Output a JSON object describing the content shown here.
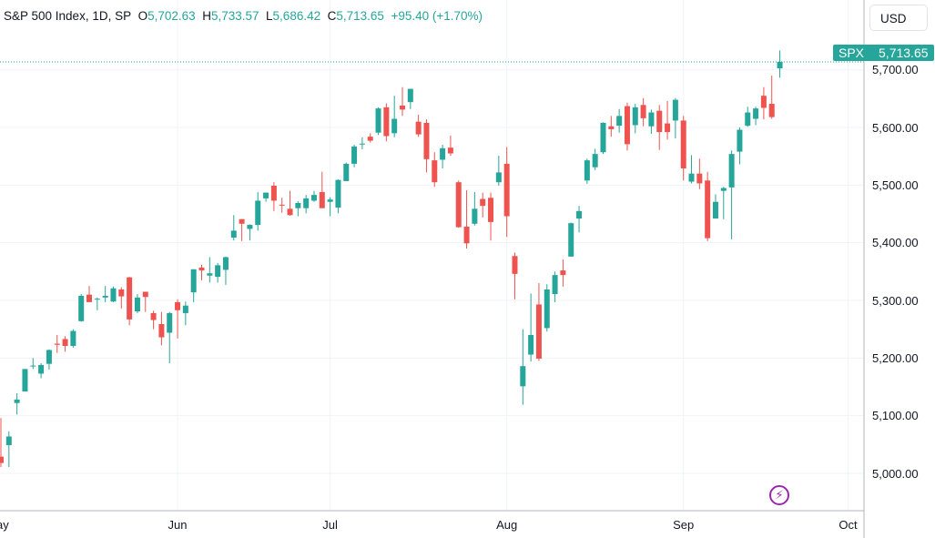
{
  "legend": {
    "title": "S&P 500 Index, 1D, SP",
    "open_label": "O",
    "open": "5,702.63",
    "high_label": "H",
    "high": "5,733.57",
    "low_label": "L",
    "low": "5,686.42",
    "close_label": "C",
    "close": "5,713.65",
    "change": "+95.40 (+1.70%)"
  },
  "currency_button": "USD",
  "price_tag": {
    "symbol": "SPX",
    "value": "5,713.65"
  },
  "colors": {
    "up": "#26a69a",
    "down": "#ef5350",
    "event": "#9c27b0"
  },
  "event_icon": "lightning-icon",
  "chart_data": {
    "type": "candlestick",
    "title": "S&P 500 Index, 1D, SP",
    "ylim": [
      4960,
      5760
    ],
    "yticks": [
      "5,000.00",
      "5,100.00",
      "5,200.00",
      "5,300.00",
      "5,400.00",
      "5,500.00",
      "5,600.00",
      "5,700.00"
    ],
    "ytick_values": [
      5000,
      5100,
      5200,
      5300,
      5400,
      5500,
      5600,
      5700
    ],
    "xticks": [
      {
        "label": "May",
        "index": -0.4
      },
      {
        "label": "Jun",
        "index": 22
      },
      {
        "label": "Jul",
        "index": 41
      },
      {
        "label": "Aug",
        "index": 63
      },
      {
        "label": "Sep",
        "index": 85
      },
      {
        "label": "Oct",
        "index": 105.5
      }
    ],
    "last_price": 5713.65,
    "ohlc": [
      [
        5029,
        5096,
        5011,
        5018
      ],
      [
        5049,
        5073,
        5011,
        5064
      ],
      [
        5122,
        5139,
        5102,
        5128
      ],
      [
        5142,
        5181,
        5142,
        5181
      ],
      [
        5187,
        5200,
        5181,
        5187
      ],
      [
        5173,
        5191,
        5165,
        5188
      ],
      [
        5190,
        5215,
        5180,
        5214
      ],
      [
        5225,
        5240,
        5209,
        5223
      ],
      [
        5233,
        5238,
        5211,
        5221
      ],
      [
        5221,
        5250,
        5218,
        5247
      ],
      [
        5264,
        5311,
        5263,
        5308
      ],
      [
        5310,
        5325,
        5297,
        5297
      ],
      [
        5303,
        5305,
        5283,
        5303
      ],
      [
        5305,
        5325,
        5297,
        5308
      ],
      [
        5298,
        5324,
        5297,
        5321
      ],
      [
        5319,
        5323,
        5286,
        5307
      ],
      [
        5340,
        5341,
        5257,
        5267
      ],
      [
        5281,
        5311,
        5278,
        5305
      ],
      [
        5315,
        5315,
        5280,
        5306
      ],
      [
        5278,
        5282,
        5250,
        5266
      ],
      [
        5259,
        5280,
        5222,
        5236
      ],
      [
        5244,
        5280,
        5191,
        5278
      ],
      [
        5297,
        5302,
        5234,
        5283
      ],
      [
        5278,
        5298,
        5257,
        5291
      ],
      [
        5314,
        5354,
        5297,
        5354
      ],
      [
        5357,
        5362,
        5335,
        5352
      ],
      [
        5343,
        5375,
        5331,
        5347
      ],
      [
        5341,
        5365,
        5331,
        5361
      ],
      [
        5353,
        5376,
        5327,
        5375
      ],
      [
        5409,
        5448,
        5404,
        5421
      ],
      [
        5441,
        5441,
        5403,
        5433
      ],
      [
        5424,
        5432,
        5404,
        5431
      ],
      [
        5431,
        5488,
        5421,
        5473
      ],
      [
        5477,
        5487,
        5471,
        5487
      ],
      [
        5499,
        5505,
        5455,
        5473
      ],
      [
        5466,
        5478,
        5452,
        5465
      ],
      [
        5459,
        5490,
        5447,
        5448
      ],
      [
        5460,
        5472,
        5446,
        5469
      ],
      [
        5460,
        5483,
        5451,
        5477
      ],
      [
        5473,
        5490,
        5471,
        5483
      ],
      [
        5488,
        5523,
        5460,
        5460
      ],
      [
        5471,
        5479,
        5446,
        5475
      ],
      [
        5461,
        5510,
        5451,
        5509
      ],
      [
        5507,
        5539,
        5507,
        5537
      ],
      [
        5537,
        5570,
        5531,
        5567
      ],
      [
        5572,
        5583,
        5562,
        5572
      ],
      [
        5584,
        5590,
        5574,
        5577
      ],
      [
        5591,
        5635,
        5587,
        5633
      ],
      [
        5635,
        5642,
        5576,
        5585
      ],
      [
        5590,
        5655,
        5583,
        5615
      ],
      [
        5638,
        5670,
        5620,
        5631
      ],
      [
        5644,
        5667,
        5632,
        5667
      ],
      [
        5610,
        5622,
        5584,
        5588
      ],
      [
        5608,
        5614,
        5522,
        5545
      ],
      [
        5543,
        5557,
        5497,
        5505
      ],
      [
        5544,
        5570,
        5529,
        5564
      ],
      [
        5565,
        5586,
        5551,
        5555
      ],
      [
        5505,
        5508,
        5426,
        5427
      ],
      [
        5428,
        5491,
        5390,
        5399
      ],
      [
        5433,
        5488,
        5430,
        5459
      ],
      [
        5476,
        5487,
        5444,
        5464
      ],
      [
        5478,
        5487,
        5404,
        5436
      ],
      [
        5505,
        5551,
        5499,
        5522
      ],
      [
        5537,
        5566,
        5410,
        5446
      ],
      [
        5377,
        5383,
        5302,
        5346
      ],
      [
        5151,
        5250,
        5119,
        5186
      ],
      [
        5206,
        5312,
        5194,
        5240
      ],
      [
        5293,
        5330,
        5195,
        5199
      ],
      [
        5252,
        5328,
        5246,
        5319
      ],
      [
        5311,
        5350,
        5297,
        5344
      ],
      [
        5352,
        5371,
        5324,
        5344
      ],
      [
        5376,
        5435,
        5376,
        5434
      ],
      [
        5442,
        5464,
        5418,
        5455
      ],
      [
        5508,
        5546,
        5502,
        5543
      ],
      [
        5531,
        5563,
        5526,
        5554
      ],
      [
        5557,
        5609,
        5554,
        5608
      ],
      [
        5602,
        5620,
        5584,
        5597
      ],
      [
        5603,
        5632,
        5591,
        5620
      ],
      [
        5637,
        5643,
        5560,
        5571
      ],
      [
        5604,
        5641,
        5590,
        5635
      ],
      [
        5639,
        5651,
        5602,
        5616
      ],
      [
        5602,
        5631,
        5589,
        5626
      ],
      [
        5629,
        5639,
        5561,
        5592
      ],
      [
        5607,
        5646,
        5579,
        5592
      ],
      [
        5612,
        5651,
        5581,
        5648
      ],
      [
        5612,
        5620,
        5508,
        5529
      ],
      [
        5506,
        5552,
        5503,
        5520
      ],
      [
        5520,
        5546,
        5493,
        5503
      ],
      [
        5508,
        5523,
        5403,
        5408
      ],
      [
        5442,
        5484,
        5442,
        5471
      ],
      [
        5490,
        5497,
        5441,
        5495
      ],
      [
        5496,
        5560,
        5406,
        5554
      ],
      [
        5558,
        5600,
        5536,
        5596
      ],
      [
        5603,
        5636,
        5601,
        5626
      ],
      [
        5615,
        5636,
        5604,
        5633
      ],
      [
        5655,
        5670,
        5614,
        5634
      ],
      [
        5641,
        5690,
        5615,
        5618
      ],
      [
        5702.63,
        5733.57,
        5686.42,
        5713.65
      ]
    ]
  }
}
